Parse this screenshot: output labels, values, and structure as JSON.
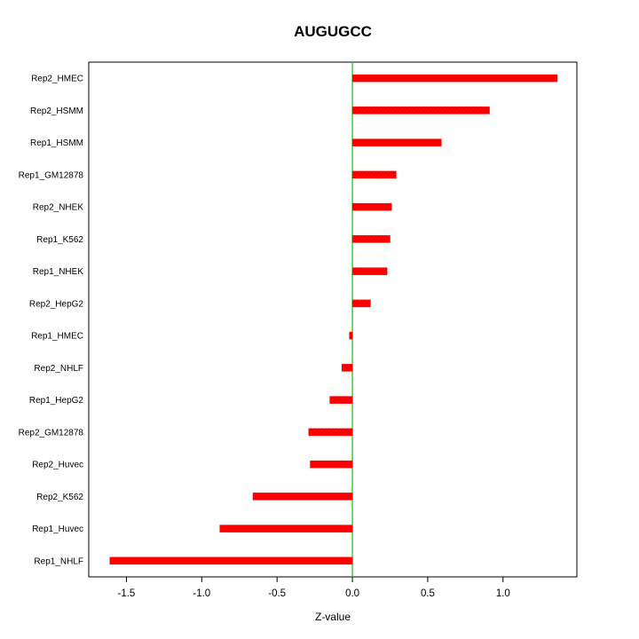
{
  "title": "AUGUGCC",
  "chart_data": {
    "type": "bar",
    "orientation": "horizontal",
    "title": "AUGUGCC",
    "xlabel": "Z-value",
    "ylabel": "",
    "categories": [
      "Rep2_HMEC",
      "Rep2_HSMM",
      "Rep1_HSMM",
      "Rep1_GM12878",
      "Rep2_NHEK",
      "Rep1_K562",
      "Rep1_NHEK",
      "Rep2_HepG2",
      "Rep1_HMEC",
      "Rep2_NHLF",
      "Rep1_HepG2",
      "Rep2_GM12878",
      "Rep2_Huvec",
      "Rep2_K562",
      "Rep1_Huvec",
      "Rep1_NHLF"
    ],
    "values": [
      1.36,
      0.91,
      0.59,
      0.29,
      0.26,
      0.25,
      0.23,
      0.12,
      -0.02,
      -0.07,
      -0.15,
      -0.29,
      -0.28,
      -0.66,
      -0.88,
      -1.61
    ],
    "xlim": [
      -1.75,
      1.49
    ],
    "xticks": [
      -1.5,
      -1.0,
      -0.5,
      0.0,
      0.5,
      1.0
    ],
    "xtick_labels": [
      "-1.5",
      "-1.0",
      "-0.5",
      "0.0",
      "0.5",
      "1.0"
    ],
    "bar_color": "#ff0000",
    "bar_texture_color": "#c40000",
    "zero_line_color": "#00cc00",
    "axis_color": "#000000",
    "grid": false,
    "legend": false
  }
}
